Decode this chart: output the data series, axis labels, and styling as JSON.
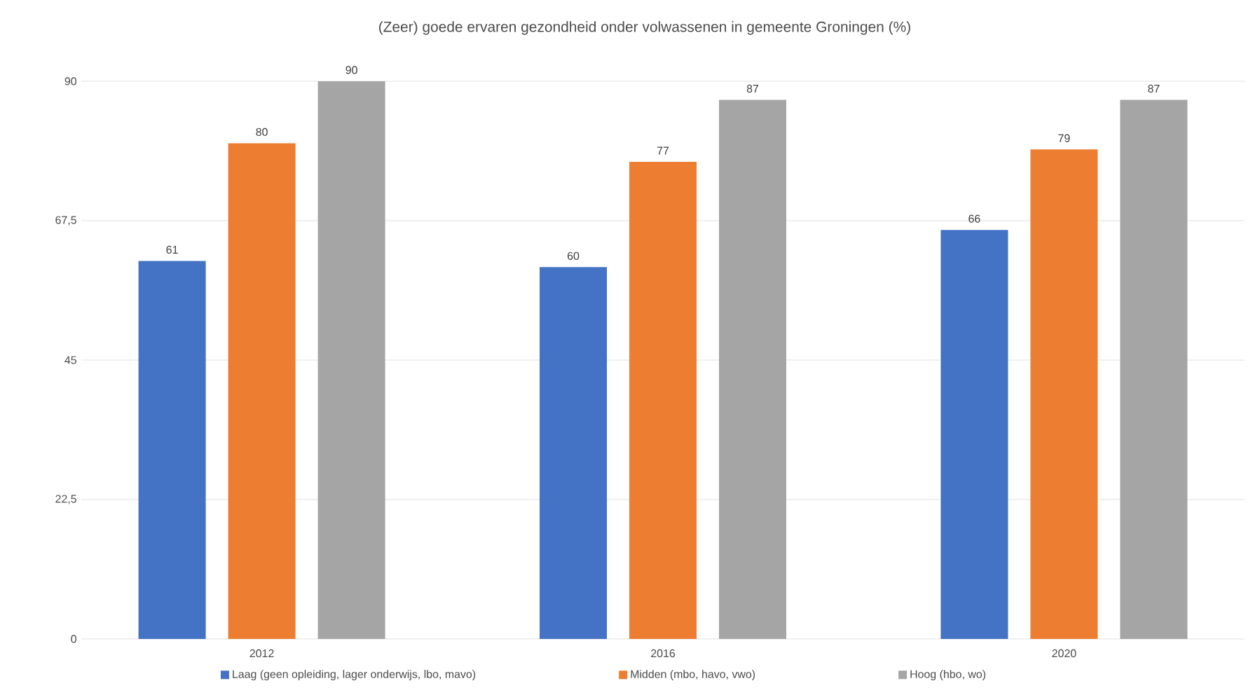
{
  "chart_data": {
    "type": "bar",
    "title": "(Zeer) goede ervaren gezondheid onder volwassenen in gemeente Groningen (%)",
    "categories": [
      "2012",
      "2016",
      "2020"
    ],
    "series": [
      {
        "name": "Laag (geen opleiding, lager onderwijs, lbo, mavo)",
        "color": "#4472c4",
        "values": [
          61,
          60,
          66
        ]
      },
      {
        "name": "Midden (mbo, havo, vwo)",
        "color": "#ed7d31",
        "values": [
          80,
          77,
          79
        ]
      },
      {
        "name": "Hoog (hbo, wo)",
        "color": "#a5a5a5",
        "values": [
          90,
          87,
          87
        ]
      }
    ],
    "ylim": [
      0,
      90
    ],
    "yticks": [
      0,
      {
        "value": 22.5,
        "label": "22,5"
      },
      45,
      {
        "value": 67.5,
        "label": "67,5"
      },
      90
    ],
    "grid": "y",
    "legend": "bottom",
    "data_labels": true
  }
}
